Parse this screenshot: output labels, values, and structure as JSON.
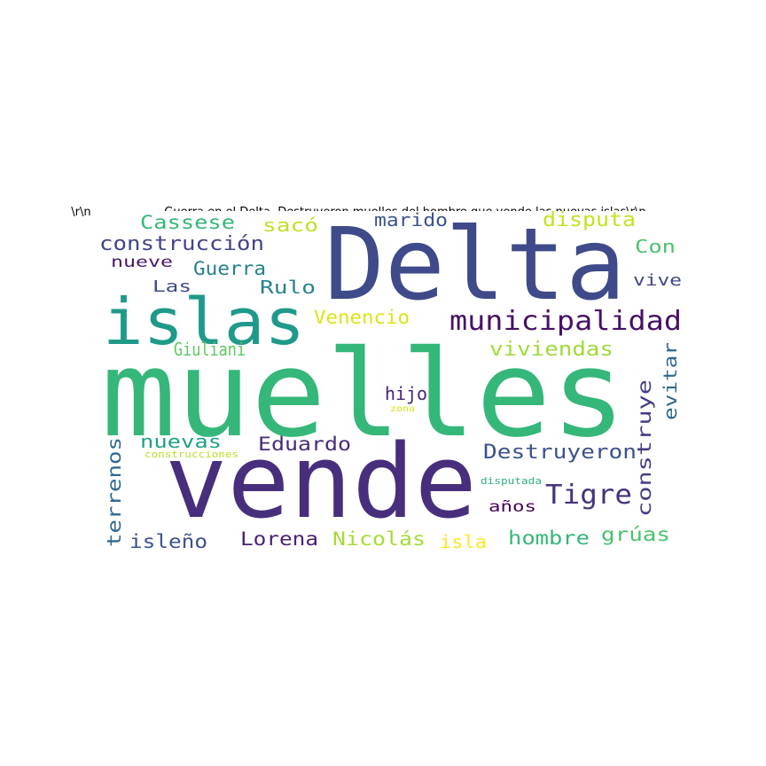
{
  "header": {
    "left_text": "\\r\\n",
    "title": "Guerra en el Delta. Destruyeron muelles del hombre que vende las nuevas islas\\r\\n"
  },
  "words": [
    {
      "text": "muelles",
      "color": "#35b779"
    },
    {
      "text": "vende",
      "color": "#472f7d"
    },
    {
      "text": "Delta",
      "color": "#3e4a89"
    },
    {
      "text": "islas",
      "color": "#1f9a8a"
    },
    {
      "text": "municipalidad",
      "color": "#471164"
    },
    {
      "text": "Tigre",
      "color": "#46327e"
    },
    {
      "text": "Destruyeron",
      "color": "#3b528b"
    },
    {
      "text": "construcción",
      "color": "#414487"
    },
    {
      "text": "disputa",
      "color": "#c8e020"
    },
    {
      "text": "viviendas",
      "color": "#a0da39"
    },
    {
      "text": "Eduardo",
      "color": "#472c7a"
    },
    {
      "text": "Venencio",
      "color": "#dde318"
    },
    {
      "text": "Cassese",
      "color": "#35b779"
    },
    {
      "text": "construye",
      "color": "#433e85"
    },
    {
      "text": "terrenos",
      "color": "#31688e"
    },
    {
      "text": "Nicolás",
      "color": "#a5db36"
    },
    {
      "text": "hombre",
      "color": "#35b779"
    },
    {
      "text": "grúas",
      "color": "#4ac16d"
    },
    {
      "text": "Lorena",
      "color": "#482173"
    },
    {
      "text": "isleño",
      "color": "#3b528b"
    },
    {
      "text": "Guerra",
      "color": "#26828e"
    },
    {
      "text": "evitar",
      "color": "#31688e"
    },
    {
      "text": "nuevas",
      "color": "#1fa088"
    },
    {
      "text": "Giuliani",
      "color": "#5ec962"
    },
    {
      "text": "marido",
      "color": "#3b528b"
    },
    {
      "text": "sacó",
      "color": "#c2df23"
    },
    {
      "text": "Rulo",
      "color": "#26828e"
    },
    {
      "text": "Con",
      "color": "#4ac16d"
    },
    {
      "text": "hijo",
      "color": "#482475"
    },
    {
      "text": "isla",
      "color": "#fde725"
    },
    {
      "text": "Las",
      "color": "#3e4989"
    },
    {
      "text": "vive",
      "color": "#414487"
    },
    {
      "text": "años",
      "color": "#440154"
    },
    {
      "text": "nueve",
      "color": "#481668"
    },
    {
      "text": "construcciones",
      "color": "#b8de29"
    },
    {
      "text": "disputada",
      "color": "#2db27d"
    },
    {
      "text": "zona",
      "color": "#d8e219"
    }
  ]
}
